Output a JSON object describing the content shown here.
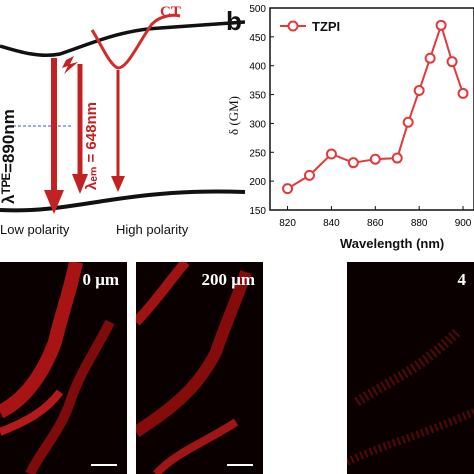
{
  "panel_a": {
    "ct_label": "CT",
    "lambda_tpe": "λᵀᴾᴱ=890nm",
    "lambda_em": "λₑₘ = 648nm",
    "low_polarity": "Low polarity",
    "high_polarity": "High polarity",
    "colors": {
      "accent": "#d42a2a",
      "dashed": "#3a5fb0",
      "curve": "#111111"
    }
  },
  "panel_b": {
    "letter": "b",
    "chart_data": {
      "type": "line",
      "series": [
        {
          "name": "TZPI",
          "x": [
            820,
            830,
            840,
            850,
            860,
            870,
            875,
            880,
            885,
            890,
            895,
            900
          ],
          "values": [
            187,
            210,
            247,
            232,
            238,
            240,
            302,
            357,
            413,
            470,
            407,
            352
          ]
        }
      ],
      "xlabel": "Wavelength (nm)",
      "ylabel": "δ (GM)",
      "xlim": [
        812,
        905
      ],
      "ylim": [
        150,
        500
      ],
      "xticks": [
        820,
        840,
        860,
        880,
        900
      ],
      "yticks": [
        150,
        200,
        250,
        300,
        350,
        400,
        450,
        500
      ],
      "legend": "top-left",
      "color": "#e23a3a"
    }
  },
  "microscopy": {
    "panels": [
      {
        "label": "0 μm"
      },
      {
        "label": "200 μm"
      },
      {
        "label": "4"
      }
    ]
  }
}
